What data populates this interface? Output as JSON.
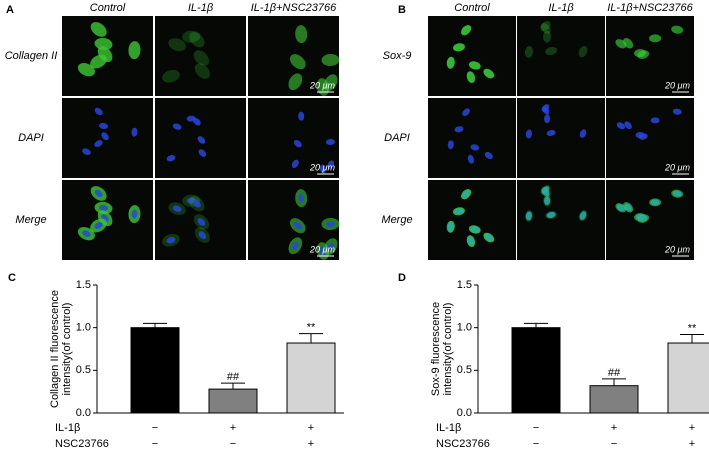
{
  "panels": [
    {
      "label": "A",
      "columns": [
        "Control",
        "IL-1β",
        "IL-1β+NSC23766"
      ],
      "rows": [
        "Collagen II",
        "DAPI",
        "Merge"
      ],
      "scale_bar": "20 μm"
    },
    {
      "label": "B",
      "columns": [
        "Control",
        "IL-1β",
        "IL-1β+NSC23766"
      ],
      "rows": [
        "Sox-9",
        "DAPI",
        "Merge"
      ],
      "scale_bar": "20 μm"
    }
  ],
  "chart_data": [
    {
      "type": "bar",
      "label": "C",
      "y_label": [
        "Collagen II fluorescence",
        "intensity(of control)"
      ],
      "values": [
        1.0,
        0.28,
        0.82
      ],
      "errors": [
        0.05,
        0.07,
        0.11
      ],
      "annotations": [
        null,
        "##",
        "**"
      ],
      "colors": [
        "#000000",
        "#808080",
        "#d4d4d4"
      ],
      "factors": [
        {
          "name": "IL-1β",
          "signs": [
            "−",
            "+",
            "+"
          ]
        },
        {
          "name": "NSC23766",
          "signs": [
            "−",
            "−",
            "+"
          ]
        }
      ],
      "ylim": [
        0,
        1.5
      ],
      "yticks": [
        {
          "value": 0,
          "label": "0.0"
        },
        {
          "value": 0.5,
          "label": "0.5"
        },
        {
          "value": 1,
          "label": "1.0"
        },
        {
          "value": 1.5,
          "label": "1.5"
        }
      ]
    },
    {
      "type": "bar",
      "label": "D",
      "y_label": [
        "Sox-9 fluorescence",
        "intensity(of control)"
      ],
      "values": [
        1.0,
        0.32,
        0.82
      ],
      "errors": [
        0.05,
        0.08,
        0.1
      ],
      "annotations": [
        null,
        "##",
        "**"
      ],
      "colors": [
        "#000000",
        "#808080",
        "#d4d4d4"
      ],
      "factors": [
        {
          "name": "IL-1β",
          "signs": [
            "−",
            "+",
            "+"
          ]
        },
        {
          "name": "NSC23766",
          "signs": [
            "−",
            "−",
            "+"
          ]
        }
      ],
      "ylim": [
        0,
        1.5
      ],
      "yticks": [
        {
          "value": 0,
          "label": "0.0"
        },
        {
          "value": 0.5,
          "label": "0.5"
        },
        {
          "value": 1,
          "label": "1.0"
        },
        {
          "value": 1.5,
          "label": "1.5"
        }
      ]
    }
  ]
}
